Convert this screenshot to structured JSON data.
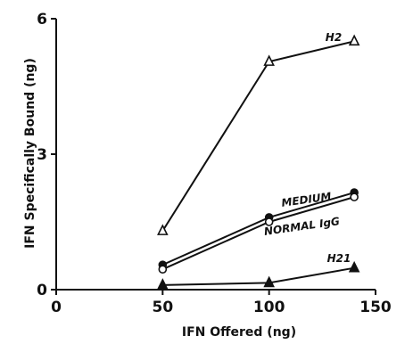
{
  "chart_data": {
    "type": "line",
    "title": "",
    "xlabel": "IFN Offered (ng)",
    "ylabel": "IFN Specifically Bound (ng)",
    "xlim": [
      0,
      150
    ],
    "ylim": [
      0,
      6
    ],
    "x_ticks": [
      0,
      50,
      100,
      150
    ],
    "x_tick_labels": [
      "0",
      "50",
      "100",
      "150"
    ],
    "y_ticks": [
      0,
      3,
      6
    ],
    "y_tick_labels": [
      "0",
      "3",
      "6"
    ],
    "grid": false,
    "legend": "none (series labeled directly on lines)",
    "series": [
      {
        "name": "H2",
        "marker": "open-triangle",
        "x": [
          50,
          100,
          140
        ],
        "y": [
          1.3,
          5.05,
          5.5
        ]
      },
      {
        "name": "MEDIUM",
        "marker": "filled-circle",
        "x": [
          50,
          100,
          140
        ],
        "y": [
          0.55,
          1.6,
          2.15
        ]
      },
      {
        "name": "NORMAL IgG",
        "marker": "open-circle",
        "x": [
          50,
          100,
          140
        ],
        "y": [
          0.45,
          1.5,
          2.05
        ]
      },
      {
        "name": "H21",
        "marker": "filled-triangle",
        "x": [
          50,
          100,
          140
        ],
        "y": [
          0.1,
          0.15,
          0.48
        ]
      }
    ]
  }
}
